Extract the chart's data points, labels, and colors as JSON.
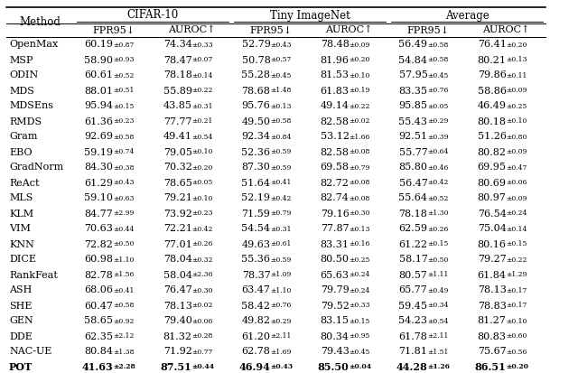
{
  "col_groups": [
    "CIFAR-10",
    "Tiny ImageNet",
    "Average"
  ],
  "sub_cols": [
    "FPR95↓",
    "AUROC↑"
  ],
  "methods": [
    "OpenMax",
    "MSP",
    "ODIN",
    "MDS",
    "MDSEns",
    "RMDS",
    "Gram",
    "EBO",
    "GradNorm",
    "ReAct",
    "MLS",
    "KLM",
    "VIM",
    "KNN",
    "DICE",
    "RankFeat",
    "ASH",
    "SHE",
    "GEN",
    "DDE",
    "NAC-UE",
    "POT"
  ],
  "data": {
    "OpenMax": [
      "60.19",
      "0.87",
      "74.34",
      "0.33",
      "52.79",
      "0.43",
      "78.48",
      "0.09",
      "56.49",
      "0.58",
      "76.41",
      "0.20"
    ],
    "MSP": [
      "58.90",
      "0.93",
      "78.47",
      "0.07",
      "50.78",
      "0.57",
      "81.96",
      "0.20",
      "54.84",
      "0.58",
      "80.21",
      "0.13"
    ],
    "ODIN": [
      "60.61",
      "0.52",
      "78.18",
      "0.14",
      "55.28",
      "0.45",
      "81.53",
      "0.10",
      "57.95",
      "0.45",
      "79.86",
      "0.11"
    ],
    "MDS": [
      "88.01",
      "0.51",
      "55.89",
      "0.22",
      "78.68",
      "1.48",
      "61.83",
      "0.19",
      "83.35",
      "0.76",
      "58.86",
      "0.09"
    ],
    "MDSEns": [
      "95.94",
      "0.15",
      "43.85",
      "0.31",
      "95.76",
      "0.13",
      "49.14",
      "0.22",
      "95.85",
      "0.05",
      "46.49",
      "0.25"
    ],
    "RMDS": [
      "61.36",
      "0.23",
      "77.77",
      "0.21",
      "49.50",
      "0.58",
      "82.58",
      "0.02",
      "55.43",
      "0.29",
      "80.18",
      "0.10"
    ],
    "Gram": [
      "92.69",
      "0.58",
      "49.41",
      "0.54",
      "92.34",
      "0.84",
      "53.12",
      "1.66",
      "92.51",
      "0.39",
      "51.26",
      "0.80"
    ],
    "EBO": [
      "59.19",
      "0.74",
      "79.05",
      "0.10",
      "52.36",
      "0.59",
      "82.58",
      "0.08",
      "55.77",
      "0.64",
      "80.82",
      "0.09"
    ],
    "GradNorm": [
      "84.30",
      "0.38",
      "70.32",
      "0.20",
      "87.30",
      "0.59",
      "69.58",
      "0.79",
      "85.80",
      "0.46",
      "69.95",
      "0.47"
    ],
    "ReAct": [
      "61.29",
      "0.43",
      "78.65",
      "0.05",
      "51.64",
      "0.41",
      "82.72",
      "0.08",
      "56.47",
      "0.42",
      "80.69",
      "0.06"
    ],
    "MLS": [
      "59.10",
      "0.63",
      "79.21",
      "0.10",
      "52.19",
      "0.42",
      "82.74",
      "0.08",
      "55.64",
      "0.52",
      "80.97",
      "0.09"
    ],
    "KLM": [
      "84.77",
      "2.99",
      "73.92",
      "0.23",
      "71.59",
      "0.79",
      "79.16",
      "0.30",
      "78.18",
      "1.30",
      "76.54",
      "0.24"
    ],
    "VIM": [
      "70.63",
      "0.44",
      "72.21",
      "0.42",
      "54.54",
      "0.31",
      "77.87",
      "0.13",
      "62.59",
      "0.26",
      "75.04",
      "0.14"
    ],
    "KNN": [
      "72.82",
      "0.50",
      "77.01",
      "0.26",
      "49.63",
      "0.61",
      "83.31",
      "0.16",
      "61.22",
      "0.15",
      "80.16",
      "0.15"
    ],
    "DICE": [
      "60.98",
      "1.10",
      "78.04",
      "0.32",
      "55.36",
      "0.59",
      "80.50",
      "0.25",
      "58.17",
      "0.50",
      "79.27",
      "0.22"
    ],
    "RankFeat": [
      "82.78",
      "1.56",
      "58.04",
      "2.36",
      "78.37",
      "1.09",
      "65.63",
      "0.24",
      "80.57",
      "1.11",
      "61.84",
      "1.29"
    ],
    "ASH": [
      "68.06",
      "0.41",
      "76.47",
      "0.30",
      "63.47",
      "1.10",
      "79.79",
      "0.24",
      "65.77",
      "0.49",
      "78.13",
      "0.17"
    ],
    "SHE": [
      "60.47",
      "0.58",
      "78.13",
      "0.02",
      "58.42",
      "0.76",
      "79.52",
      "0.33",
      "59.45",
      "0.34",
      "78.83",
      "0.17"
    ],
    "GEN": [
      "58.65",
      "0.92",
      "79.40",
      "0.06",
      "49.82",
      "0.29",
      "83.15",
      "0.15",
      "54.23",
      "0.54",
      "81.27",
      "0.10"
    ],
    "DDE": [
      "62.35",
      "2.12",
      "81.32",
      "0.28",
      "61.20",
      "2.11",
      "80.34",
      "0.95",
      "61.78",
      "2.11",
      "80.83",
      "0.60"
    ],
    "NAC-UE": [
      "80.84",
      "1.38",
      "71.92",
      "0.77",
      "62.78",
      "1.69",
      "79.43",
      "0.45",
      "71.81",
      "1.51",
      "75.67",
      "0.56"
    ],
    "POT": [
      "41.63",
      "2.28",
      "87.51",
      "0.44",
      "46.94",
      "0.43",
      "85.50",
      "0.04",
      "44.28",
      "1.26",
      "86.51",
      "0.20"
    ]
  },
  "bold_row": "POT",
  "bg_color": "#ffffff"
}
